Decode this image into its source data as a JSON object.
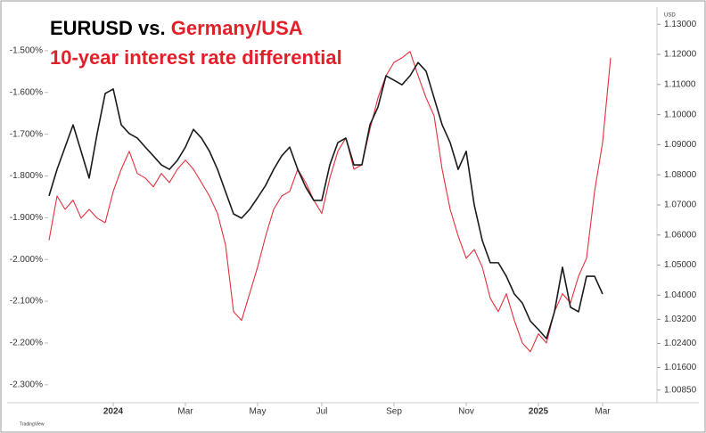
{
  "chart_data": {
    "type": "line",
    "title": "EURUSD vs.",
    "title_highlight": "Germany/USA",
    "subtitle": "10-year interest rate differential",
    "y2label": "USD",
    "source": "TradingView",
    "categories": [
      null,
      null,
      null,
      null,
      null,
      null,
      null,
      null,
      "2024",
      null,
      null,
      null,
      null,
      null,
      null,
      null,
      null,
      "Mar",
      null,
      null,
      null,
      null,
      null,
      null,
      null,
      null,
      "May",
      null,
      null,
      null,
      null,
      null,
      null,
      null,
      "Jul",
      null,
      null,
      null,
      null,
      null,
      null,
      null,
      null,
      "Sep",
      null,
      null,
      null,
      null,
      null,
      null,
      null,
      null,
      "Nov",
      null,
      null,
      null,
      null,
      null,
      null,
      null,
      null,
      "2025",
      null,
      null,
      null,
      null,
      null,
      null,
      null,
      "Mar",
      null
    ],
    "series": [
      {
        "color": "#e3303c",
        "axis": "y",
        "values": [
          -1.954,
          -1.848,
          -1.88,
          -1.858,
          -1.901,
          -1.88,
          -1.901,
          -1.912,
          -1.837,
          -1.784,
          -1.741,
          -1.794,
          -1.805,
          -1.826,
          -1.794,
          -1.816,
          -1.784,
          -1.762,
          -1.784,
          -1.816,
          -1.848,
          -1.89,
          -1.965,
          -2.125,
          -2.146,
          -2.082,
          -2.018,
          -1.944,
          -1.88,
          -1.848,
          -1.837,
          -1.784,
          -1.816,
          -1.858,
          -1.89,
          -1.805,
          -1.741,
          -1.709,
          -1.784,
          -1.773,
          -1.688,
          -1.613,
          -1.56,
          -1.528,
          -1.517,
          -1.502,
          -1.56,
          -1.613,
          -1.656,
          -1.784,
          -1.88,
          -1.944,
          -1.997,
          -1.976,
          -2.018,
          -2.093,
          -2.125,
          -2.082,
          -2.146,
          -2.2,
          -2.221,
          -2.178,
          -2.2,
          -2.125,
          -2.082,
          -2.104,
          -2.04,
          -1.997,
          -1.837,
          -1.72,
          -1.517
        ]
      },
      {
        "color": "#1a1a1a",
        "axis": "y2",
        "values": [
          1.073,
          1.0818,
          1.0892,
          1.0966,
          1.0878,
          1.0789,
          1.0937,
          1.107,
          1.1085,
          1.0966,
          1.0937,
          1.0922,
          1.0892,
          1.0863,
          1.0833,
          1.0818,
          1.0848,
          1.0892,
          1.0951,
          1.0922,
          1.0878,
          1.0818,
          1.0744,
          1.067,
          1.0656,
          1.0685,
          1.0724,
          1.0765,
          1.0818,
          1.0863,
          1.0892,
          1.0818,
          1.0759,
          1.0715,
          1.0715,
          1.0833,
          1.0907,
          1.0922,
          1.0833,
          1.0833,
          1.0966,
          1.1025,
          1.1129,
          1.1114,
          1.1099,
          1.1129,
          1.1173,
          1.1144,
          1.1055,
          1.0966,
          1.0907,
          1.0818,
          1.0878,
          1.07,
          1.0582,
          1.0508,
          1.0508,
          1.0463,
          1.0404,
          1.0374,
          1.0314,
          1.0286,
          1.0256,
          1.0345,
          1.0493,
          1.036,
          1.0345,
          1.0463,
          1.0463,
          1.0404,
          null
        ]
      }
    ],
    "ylim": [
      -2.343,
      -1.4
    ],
    "yticks": [
      {
        "value": -1.5,
        "label": "-1.500%"
      },
      {
        "value": -1.6,
        "label": "-1.600%"
      },
      {
        "value": -1.7,
        "label": "-1.700%"
      },
      {
        "value": -1.8,
        "label": "-1.800%"
      },
      {
        "value": -1.9,
        "label": "-1.900%"
      },
      {
        "value": -2.0,
        "label": "-2.000%"
      },
      {
        "value": -2.1,
        "label": "-2.100%"
      },
      {
        "value": -2.2,
        "label": "-2.200%"
      },
      {
        "value": -2.3,
        "label": "-2.300%"
      }
    ],
    "y2lim": [
      1.0043,
      1.1351
    ],
    "y2ticks": [
      {
        "value": 1.13,
        "label": "1.13000"
      },
      {
        "value": 1.12,
        "label": "1.12000"
      },
      {
        "value": 1.11,
        "label": "1.11000"
      },
      {
        "value": 1.1,
        "label": "1.10000"
      },
      {
        "value": 1.09,
        "label": "1.09000"
      },
      {
        "value": 1.08,
        "label": "1.08000"
      },
      {
        "value": 1.07,
        "label": "1.07000"
      },
      {
        "value": 1.06,
        "label": "1.06000"
      },
      {
        "value": 1.05,
        "label": "1.05000"
      },
      {
        "value": 1.04,
        "label": "1.04000"
      },
      {
        "value": 1.032,
        "label": "1.03200"
      },
      {
        "value": 1.024,
        "label": "1.02400"
      },
      {
        "value": 1.016,
        "label": "1.01600"
      },
      {
        "value": 1.0085,
        "label": "1.00850"
      }
    ],
    "grid": false
  }
}
